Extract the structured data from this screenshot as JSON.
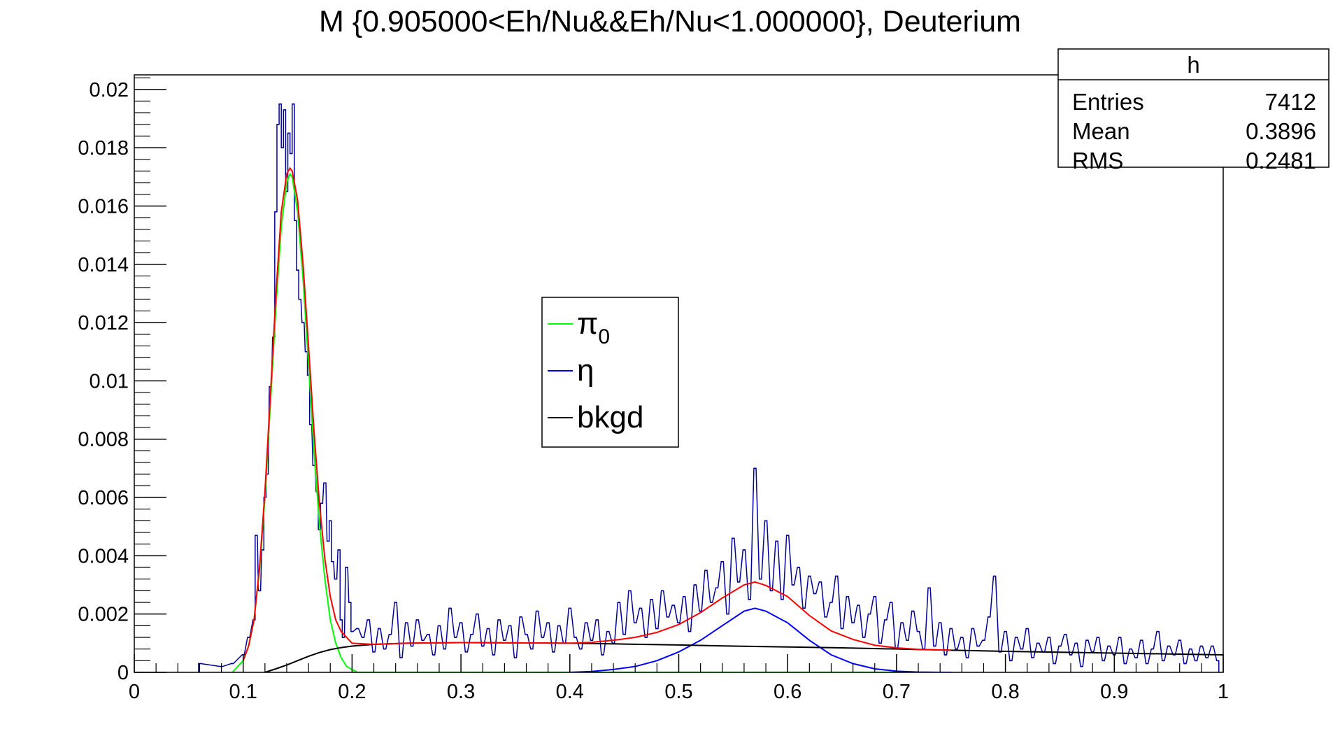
{
  "chart_data": {
    "type": "line",
    "title": "M {0.905000<Eh/Nu&&Eh/Nu<1.000000}, Deuterium",
    "xlabel": "",
    "ylabel": "",
    "xlim": [
      0,
      1
    ],
    "ylim": [
      0,
      0.0205
    ],
    "x_ticks": [
      "0",
      "0.1",
      "0.2",
      "0.3",
      "0.4",
      "0.5",
      "0.6",
      "0.7",
      "0.8",
      "0.9",
      "1"
    ],
    "y_ticks": [
      "0",
      "0.002",
      "0.004",
      "0.006",
      "0.008",
      "0.01",
      "0.012",
      "0.014",
      "0.016",
      "0.018",
      "0.02"
    ],
    "grid": false,
    "stats_box": {
      "name": "h",
      "rows": [
        {
          "label": "Entries",
          "value": "7412"
        },
        {
          "label": "Mean",
          "value": "0.3896"
        },
        {
          "label": "RMS",
          "value": "0.2481"
        }
      ]
    },
    "legend": {
      "placement": "center",
      "entries": [
        {
          "name": "π",
          "sub": "0",
          "color": "#00ff00"
        },
        {
          "name": "η",
          "sub": "",
          "color": "#0000ff"
        },
        {
          "name": "bkgd",
          "sub": "",
          "color": "#000000"
        }
      ]
    },
    "histogram": {
      "color": "#000099",
      "bin_width": 0.002,
      "points": [
        [
          0.06,
          0.0003
        ],
        [
          0.08,
          0.0002
        ],
        [
          0.09,
          0.0003
        ],
        [
          0.1,
          0.0006
        ],
        [
          0.105,
          0.0012
        ],
        [
          0.11,
          0.0018
        ],
        [
          0.112,
          0.0047
        ],
        [
          0.115,
          0.0028
        ],
        [
          0.118,
          0.0042
        ],
        [
          0.12,
          0.006
        ],
        [
          0.122,
          0.0068
        ],
        [
          0.125,
          0.0098
        ],
        [
          0.128,
          0.0115
        ],
        [
          0.13,
          0.0158
        ],
        [
          0.132,
          0.0188
        ],
        [
          0.134,
          0.0195
        ],
        [
          0.136,
          0.018
        ],
        [
          0.138,
          0.0193
        ],
        [
          0.14,
          0.0165
        ],
        [
          0.142,
          0.0185
        ],
        [
          0.144,
          0.0178
        ],
        [
          0.146,
          0.0195
        ],
        [
          0.148,
          0.0155
        ],
        [
          0.15,
          0.0138
        ],
        [
          0.152,
          0.0128
        ],
        [
          0.155,
          0.012
        ],
        [
          0.158,
          0.011
        ],
        [
          0.16,
          0.0102
        ],
        [
          0.162,
          0.0085
        ],
        [
          0.165,
          0.0071
        ],
        [
          0.168,
          0.0062
        ],
        [
          0.17,
          0.0049
        ],
        [
          0.172,
          0.0058
        ],
        [
          0.175,
          0.0065
        ],
        [
          0.178,
          0.0045
        ],
        [
          0.18,
          0.0052
        ],
        [
          0.182,
          0.0038
        ],
        [
          0.185,
          0.0032
        ],
        [
          0.188,
          0.0042
        ],
        [
          0.19,
          0.0018
        ],
        [
          0.192,
          0.0012
        ],
        [
          0.195,
          0.0036
        ],
        [
          0.198,
          0.0024
        ],
        [
          0.2,
          0.0014
        ],
        [
          0.205,
          0.0015
        ],
        [
          0.21,
          0.0012
        ],
        [
          0.215,
          0.0018
        ],
        [
          0.22,
          0.0007
        ],
        [
          0.225,
          0.0015
        ],
        [
          0.23,
          0.0008
        ],
        [
          0.235,
          0.0013
        ],
        [
          0.24,
          0.0024
        ],
        [
          0.245,
          0.0005
        ],
        [
          0.25,
          0.0017
        ],
        [
          0.255,
          0.0009
        ],
        [
          0.26,
          0.0018
        ],
        [
          0.265,
          0.0011
        ],
        [
          0.27,
          0.0013
        ],
        [
          0.275,
          0.0006
        ],
        [
          0.28,
          0.0016
        ],
        [
          0.285,
          0.0008
        ],
        [
          0.29,
          0.0022
        ],
        [
          0.295,
          0.0012
        ],
        [
          0.3,
          0.0017
        ],
        [
          0.305,
          0.0007
        ],
        [
          0.31,
          0.0013
        ],
        [
          0.315,
          0.002
        ],
        [
          0.32,
          0.0009
        ],
        [
          0.325,
          0.0015
        ],
        [
          0.33,
          0.0006
        ],
        [
          0.335,
          0.0018
        ],
        [
          0.34,
          0.0011
        ],
        [
          0.345,
          0.0016
        ],
        [
          0.35,
          0.0005
        ],
        [
          0.355,
          0.0019
        ],
        [
          0.36,
          0.0013
        ],
        [
          0.365,
          0.0008
        ],
        [
          0.37,
          0.0021
        ],
        [
          0.375,
          0.0012
        ],
        [
          0.38,
          0.0017
        ],
        [
          0.385,
          0.0007
        ],
        [
          0.39,
          0.0016
        ],
        [
          0.395,
          0.001
        ],
        [
          0.4,
          0.0022
        ],
        [
          0.405,
          0.0012
        ],
        [
          0.41,
          0.0008
        ],
        [
          0.415,
          0.0017
        ],
        [
          0.42,
          0.0011
        ],
        [
          0.425,
          0.0018
        ],
        [
          0.43,
          0.0006
        ],
        [
          0.435,
          0.0014
        ],
        [
          0.44,
          0.001
        ],
        [
          0.445,
          0.0024
        ],
        [
          0.45,
          0.0013
        ],
        [
          0.455,
          0.0028
        ],
        [
          0.46,
          0.0017
        ],
        [
          0.465,
          0.0022
        ],
        [
          0.47,
          0.0012
        ],
        [
          0.475,
          0.0025
        ],
        [
          0.48,
          0.0015
        ],
        [
          0.485,
          0.0028
        ],
        [
          0.49,
          0.0019
        ],
        [
          0.495,
          0.0023
        ],
        [
          0.5,
          0.0017
        ],
        [
          0.505,
          0.0026
        ],
        [
          0.51,
          0.0014
        ],
        [
          0.515,
          0.003
        ],
        [
          0.52,
          0.0021
        ],
        [
          0.525,
          0.0035
        ],
        [
          0.53,
          0.0024
        ],
        [
          0.535,
          0.0029
        ],
        [
          0.54,
          0.0038
        ],
        [
          0.545,
          0.002
        ],
        [
          0.55,
          0.0046
        ],
        [
          0.555,
          0.0031
        ],
        [
          0.56,
          0.0042
        ],
        [
          0.565,
          0.0025
        ],
        [
          0.57,
          0.007
        ],
        [
          0.575,
          0.0032
        ],
        [
          0.58,
          0.0052
        ],
        [
          0.585,
          0.0028
        ],
        [
          0.59,
          0.0045
        ],
        [
          0.595,
          0.0025
        ],
        [
          0.6,
          0.0047
        ],
        [
          0.605,
          0.003
        ],
        [
          0.61,
          0.0036
        ],
        [
          0.615,
          0.0022
        ],
        [
          0.62,
          0.0033
        ],
        [
          0.625,
          0.0027
        ],
        [
          0.63,
          0.0031
        ],
        [
          0.635,
          0.0019
        ],
        [
          0.64,
          0.0024
        ],
        [
          0.645,
          0.0033
        ],
        [
          0.65,
          0.0015
        ],
        [
          0.655,
          0.0026
        ],
        [
          0.66,
          0.0017
        ],
        [
          0.665,
          0.0023
        ],
        [
          0.67,
          0.0012
        ],
        [
          0.675,
          0.002
        ],
        [
          0.68,
          0.0026
        ],
        [
          0.685,
          0.001
        ],
        [
          0.69,
          0.0018
        ],
        [
          0.695,
          0.0024
        ],
        [
          0.7,
          0.0008
        ],
        [
          0.705,
          0.0017
        ],
        [
          0.71,
          0.0011
        ],
        [
          0.715,
          0.0021
        ],
        [
          0.72,
          0.0014
        ],
        [
          0.725,
          0.0008
        ],
        [
          0.73,
          0.0029
        ],
        [
          0.735,
          0.0009
        ],
        [
          0.74,
          0.0017
        ],
        [
          0.745,
          0.0006
        ],
        [
          0.75,
          0.0015
        ],
        [
          0.755,
          0.0008
        ],
        [
          0.76,
          0.0012
        ],
        [
          0.765,
          0.0005
        ],
        [
          0.77,
          0.0015
        ],
        [
          0.775,
          0.0009
        ],
        [
          0.78,
          0.0011
        ],
        [
          0.785,
          0.0019
        ],
        [
          0.79,
          0.0033
        ],
        [
          0.795,
          0.0007
        ],
        [
          0.8,
          0.0014
        ],
        [
          0.805,
          0.0004
        ],
        [
          0.81,
          0.0012
        ],
        [
          0.815,
          0.0008
        ],
        [
          0.82,
          0.0015
        ],
        [
          0.825,
          0.0005
        ],
        [
          0.83,
          0.001
        ],
        [
          0.835,
          0.0007
        ],
        [
          0.84,
          0.0012
        ],
        [
          0.845,
          0.0003
        ],
        [
          0.85,
          0.0009
        ],
        [
          0.855,
          0.0013
        ],
        [
          0.86,
          0.0006
        ],
        [
          0.865,
          0.001
        ],
        [
          0.87,
          0.0002
        ],
        [
          0.875,
          0.0011
        ],
        [
          0.88,
          0.0007
        ],
        [
          0.885,
          0.0012
        ],
        [
          0.89,
          0.0004
        ],
        [
          0.895,
          0.0009
        ],
        [
          0.9,
          0.0006
        ],
        [
          0.905,
          0.0012
        ],
        [
          0.91,
          0.0003
        ],
        [
          0.915,
          0.0008
        ],
        [
          0.92,
          0.0005
        ],
        [
          0.925,
          0.0011
        ],
        [
          0.93,
          0.0003
        ],
        [
          0.935,
          0.0008
        ],
        [
          0.94,
          0.0014
        ],
        [
          0.945,
          0.0004
        ],
        [
          0.95,
          0.0009
        ],
        [
          0.955,
          0.0006
        ],
        [
          0.96,
          0.0011
        ],
        [
          0.965,
          0.0003
        ],
        [
          0.97,
          0.0008
        ],
        [
          0.975,
          0.0004
        ],
        [
          0.98,
          0.0009
        ],
        [
          0.985,
          0.0005
        ],
        [
          0.99,
          0.0009
        ],
        [
          0.995,
          0.0004
        ]
      ]
    },
    "series": [
      {
        "color": "#00ff00",
        "x": [
          0.09,
          0.1,
          0.105,
          0.11,
          0.115,
          0.12,
          0.125,
          0.13,
          0.135,
          0.14,
          0.143,
          0.145,
          0.15,
          0.155,
          0.16,
          0.165,
          0.17,
          0.175,
          0.18,
          0.185,
          0.19,
          0.195,
          0.2,
          0.205,
          0.21,
          0.22,
          0.25,
          0.3,
          0.4,
          0.5,
          0.6,
          0.7,
          0.75
        ],
        "y": [
          0.0,
          0.0004,
          0.0009,
          0.0018,
          0.0035,
          0.006,
          0.0092,
          0.0125,
          0.0153,
          0.0168,
          0.0171,
          0.017,
          0.0158,
          0.0135,
          0.0106,
          0.0076,
          0.0051,
          0.0032,
          0.0018,
          0.001,
          0.0005,
          0.0002,
          0.0001,
          0.0,
          0.0,
          0.0,
          0.0,
          0.0,
          0.0,
          0.0,
          0.0,
          0.0,
          0.0
        ]
      },
      {
        "color": "#0000ff",
        "x": [
          0.4,
          0.42,
          0.44,
          0.46,
          0.48,
          0.5,
          0.52,
          0.54,
          0.56,
          0.57,
          0.58,
          0.6,
          0.62,
          0.64,
          0.66,
          0.68,
          0.7,
          0.72,
          0.74,
          0.75
        ],
        "y": [
          0.0,
          3e-05,
          0.0001,
          0.0002,
          0.0004,
          0.0007,
          0.0011,
          0.0016,
          0.0021,
          0.0022,
          0.0021,
          0.0017,
          0.0011,
          0.0006,
          0.0003,
          0.00012,
          4e-05,
          1e-05,
          0.0,
          0.0
        ]
      },
      {
        "color": "#000000",
        "x": [
          0.12,
          0.13,
          0.14,
          0.15,
          0.16,
          0.17,
          0.18,
          0.19,
          0.2,
          0.22,
          0.25,
          0.3,
          0.35,
          0.4,
          0.45,
          0.5,
          0.55,
          0.6,
          0.65,
          0.7,
          0.75,
          0.8,
          0.85,
          0.9,
          0.95,
          1.0
        ],
        "y": [
          0.0,
          0.00012,
          0.00025,
          0.0004,
          0.00055,
          0.00068,
          0.00078,
          0.00085,
          0.0009,
          0.00096,
          0.001,
          0.00102,
          0.00101,
          0.001,
          0.00097,
          0.00094,
          0.0009,
          0.00087,
          0.00084,
          0.0008,
          0.00076,
          0.00072,
          0.00069,
          0.00066,
          0.00063,
          0.0006
        ]
      },
      {
        "color": "#ff0000",
        "x": [
          0.1,
          0.105,
          0.11,
          0.115,
          0.12,
          0.125,
          0.13,
          0.135,
          0.14,
          0.143,
          0.145,
          0.15,
          0.155,
          0.16,
          0.165,
          0.17,
          0.175,
          0.18,
          0.185,
          0.19,
          0.2,
          0.22,
          0.25,
          0.3,
          0.35,
          0.4,
          0.42,
          0.44,
          0.46,
          0.48,
          0.5,
          0.52,
          0.54,
          0.56,
          0.57,
          0.58,
          0.6,
          0.62,
          0.64,
          0.66,
          0.68,
          0.7,
          0.72,
          0.75
        ],
        "y": [
          0.0004,
          0.0009,
          0.0018,
          0.0036,
          0.0062,
          0.0095,
          0.0129,
          0.0158,
          0.0171,
          0.0173,
          0.0172,
          0.0162,
          0.014,
          0.0112,
          0.0083,
          0.0058,
          0.0039,
          0.0026,
          0.0018,
          0.0014,
          0.001,
          0.00096,
          0.001,
          0.00102,
          0.00101,
          0.001,
          0.00103,
          0.0011,
          0.0012,
          0.00137,
          0.00164,
          0.00205,
          0.00255,
          0.003,
          0.0031,
          0.00298,
          0.0026,
          0.00195,
          0.00142,
          0.00113,
          0.00093,
          0.00084,
          0.00079,
          0.00076
        ]
      }
    ]
  }
}
